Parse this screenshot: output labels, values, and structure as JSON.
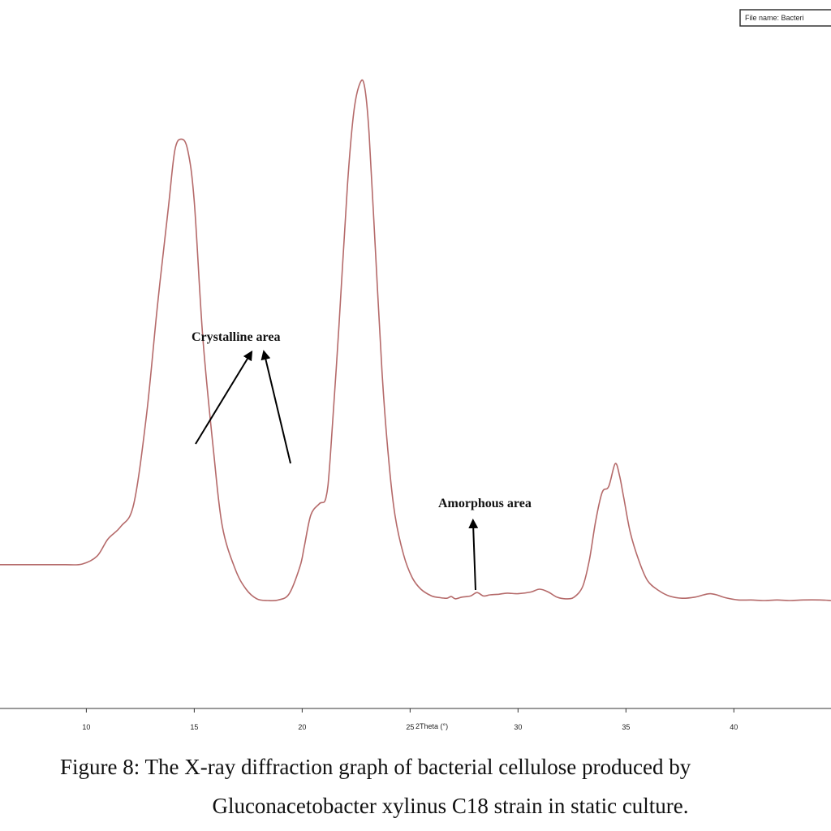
{
  "chart_data": {
    "type": "line",
    "xlabel": "2Theta (°)",
    "xlim": [
      6,
      44.5
    ],
    "ticks": [
      10,
      15,
      20,
      25,
      30,
      35,
      40
    ],
    "tick_labels": [
      "10",
      "15",
      "20",
      "25",
      "30",
      "35",
      "40"
    ],
    "series": [
      {
        "color": "#b56a6a",
        "x": [
          6.0,
          7.0,
          8.0,
          9.0,
          9.8,
          10.5,
          11.0,
          11.6,
          12.2,
          12.8,
          13.3,
          13.8,
          14.1,
          14.4,
          14.7,
          15.0,
          15.4,
          15.9,
          16.3,
          16.9,
          17.4,
          17.9,
          18.4,
          18.9,
          19.4,
          19.9,
          20.1,
          20.4,
          20.8,
          21.1,
          21.3,
          21.7,
          22.1,
          22.4,
          22.7,
          22.9,
          23.1,
          23.4,
          23.7,
          24.0,
          24.3,
          24.7,
          25.1,
          25.5,
          26.0,
          26.4,
          26.7,
          26.9,
          27.1,
          27.4,
          27.8,
          28.1,
          28.4,
          28.7,
          29.1,
          29.5,
          30.0,
          30.6,
          31.0,
          31.4,
          31.8,
          32.2,
          32.6,
          33.0,
          33.3,
          33.6,
          33.9,
          34.2,
          34.5,
          34.7,
          34.9,
          35.2,
          35.6,
          36.0,
          36.5,
          37.0,
          37.6,
          38.2,
          38.6,
          38.9,
          39.2,
          39.6,
          40.2,
          40.8,
          41.4,
          42.0,
          42.6,
          43.2,
          44.0,
          44.5
        ],
        "y": [
          6.3,
          6.3,
          6.3,
          6.3,
          6.4,
          7.8,
          10.8,
          13.0,
          17.0,
          33.0,
          52.0,
          69.0,
          79.0,
          81.0,
          79.0,
          70.0,
          46.0,
          26.0,
          13.0,
          5.5,
          2.0,
          0.3,
          0.0,
          0.1,
          1.2,
          6.0,
          9.5,
          15.0,
          17.0,
          18.0,
          25.0,
          48.0,
          73.0,
          86.0,
          91.0,
          90.0,
          82.0,
          61.0,
          40.0,
          25.0,
          15.0,
          8.0,
          4.0,
          2.0,
          0.8,
          0.5,
          0.4,
          0.7,
          0.3,
          0.6,
          0.8,
          1.4,
          0.8,
          1.0,
          1.1,
          1.3,
          1.2,
          1.5,
          2.0,
          1.5,
          0.6,
          0.3,
          0.6,
          2.5,
          7.0,
          14.0,
          19.0,
          20.0,
          24.0,
          22.0,
          18.0,
          12.0,
          7.0,
          3.5,
          1.8,
          0.8,
          0.4,
          0.6,
          1.0,
          1.2,
          1.0,
          0.5,
          0.1,
          0.1,
          0.0,
          0.1,
          0.0,
          0.1,
          0.1,
          0.0
        ],
        "ylim": [
          0,
          100
        ]
      }
    ],
    "annotations": [
      {
        "text": "Crystalline area",
        "arrows": 2
      },
      {
        "text": "Amorphous area",
        "arrows": 1
      }
    ]
  },
  "filebox": {
    "text": "File name: Bacteri"
  },
  "caption": {
    "line1": "Figure 8: The X-ray diffraction graph of bacterial cellulose produced by",
    "line2": "Gluconacetobacter xylinus C18 strain in static culture."
  }
}
